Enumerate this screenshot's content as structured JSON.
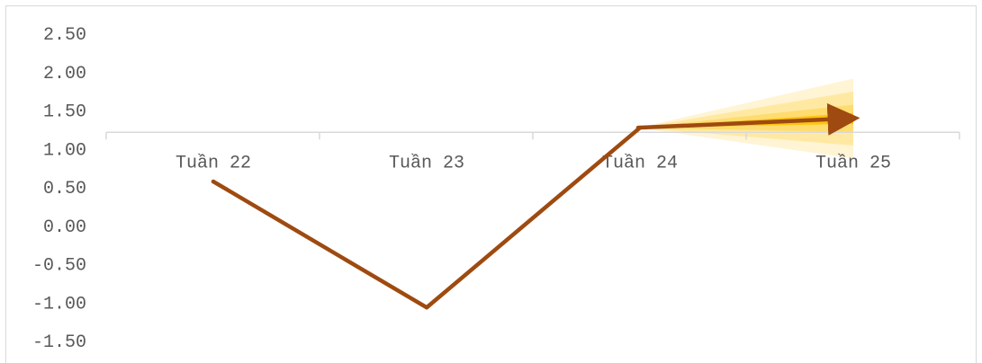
{
  "chart_data": {
    "type": "line",
    "title": "",
    "xlabel": "",
    "ylabel": "",
    "categories": [
      "Tuần 22",
      "Tuần 23",
      "Tuần 24",
      "Tuần 25"
    ],
    "y_ticks": [
      "2.50",
      "2.00",
      "1.50",
      "1.00",
      "0.50",
      "0.00",
      "-0.50",
      "-1.00",
      "-1.50"
    ],
    "ylim": [
      -1.5,
      2.5
    ],
    "grid": false,
    "legend": "none",
    "series": [
      {
        "values": [
          0.57,
          -1.07,
          1.27,
          1.39
        ]
      }
    ],
    "forecast_fan": {
      "from_category": "Tuần 24",
      "to_category": "Tuần 25",
      "center": 1.39,
      "bands": [
        {
          "low": 0.87,
          "high": 1.91
        },
        {
          "low": 1.04,
          "high": 1.74
        },
        {
          "low": 1.21,
          "high": 1.57
        },
        {
          "low": 1.32,
          "high": 1.46
        }
      ]
    },
    "colors": {
      "line": "#9e4a10",
      "axis": "#d9d9d9",
      "fan_bands": [
        "#fff2cc",
        "#ffe699",
        "#ffd966",
        "#ffc000"
      ]
    }
  }
}
